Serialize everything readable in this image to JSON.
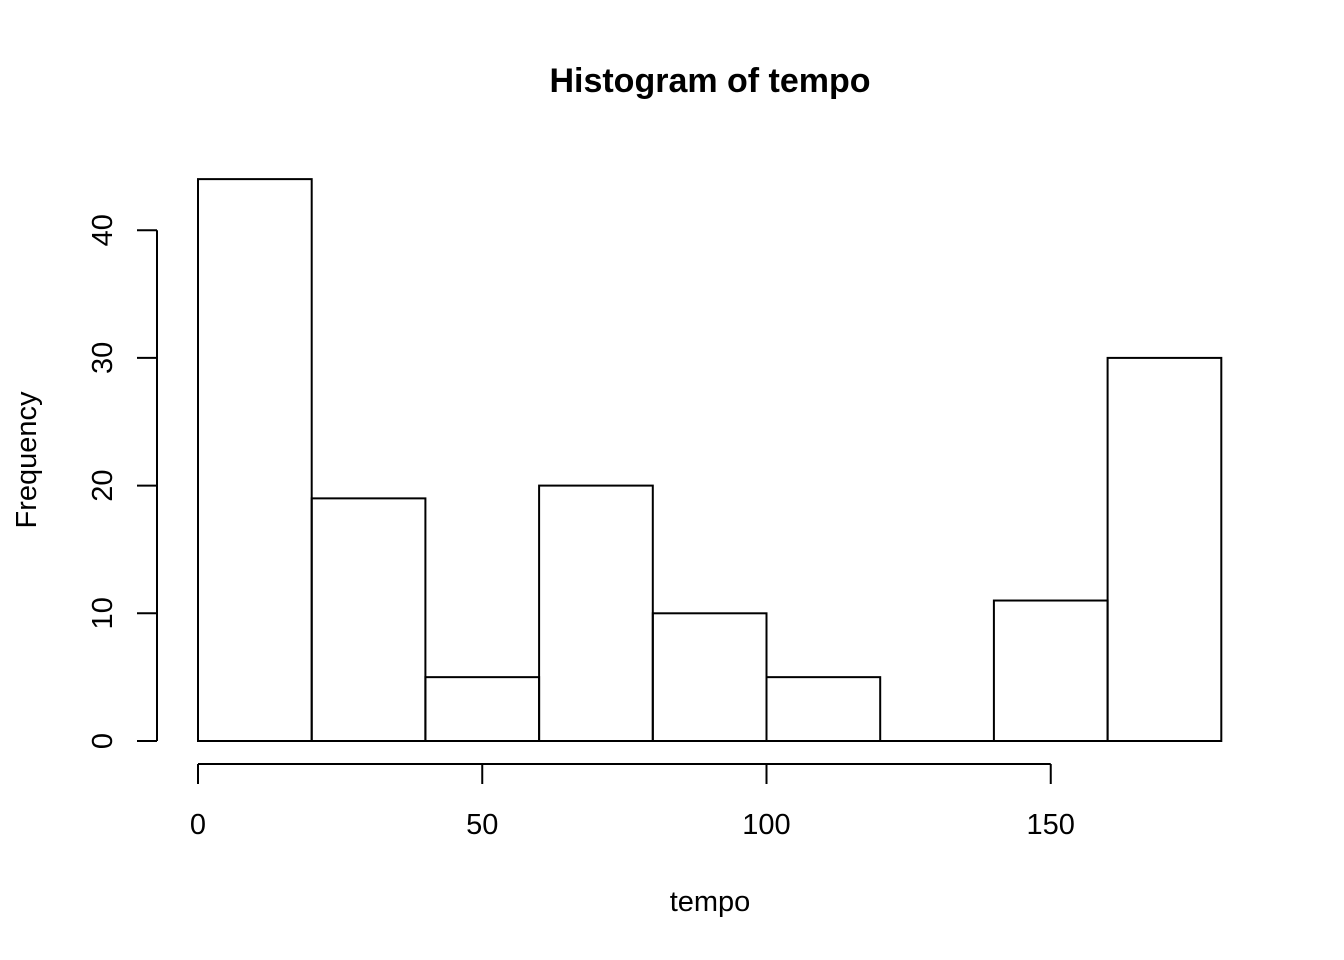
{
  "chart_data": {
    "type": "bar",
    "title": "Histogram of tempo",
    "xlabel": "tempo",
    "ylabel": "Frequency",
    "bins": [
      {
        "start": 0,
        "end": 20,
        "count": 44
      },
      {
        "start": 20,
        "end": 40,
        "count": 19
      },
      {
        "start": 40,
        "end": 60,
        "count": 5
      },
      {
        "start": 60,
        "end": 80,
        "count": 20
      },
      {
        "start": 80,
        "end": 100,
        "count": 10
      },
      {
        "start": 100,
        "end": 120,
        "count": 5
      },
      {
        "start": 120,
        "end": 140,
        "count": 0
      },
      {
        "start": 140,
        "end": 160,
        "count": 11
      },
      {
        "start": 160,
        "end": 180,
        "count": 30
      }
    ],
    "xlim": [
      0,
      180
    ],
    "ylim": [
      0,
      44
    ],
    "x_ticks": [
      0,
      50,
      100,
      150
    ],
    "x_tick_labels": [
      "0",
      "50",
      "100",
      "150"
    ],
    "y_ticks": [
      0,
      10,
      20,
      30,
      40
    ],
    "y_tick_labels": [
      "0",
      "10",
      "20",
      "30",
      "40"
    ],
    "grid": false,
    "legend": "none",
    "bar_fill": "#ffffff",
    "stroke_color": "#000000"
  }
}
